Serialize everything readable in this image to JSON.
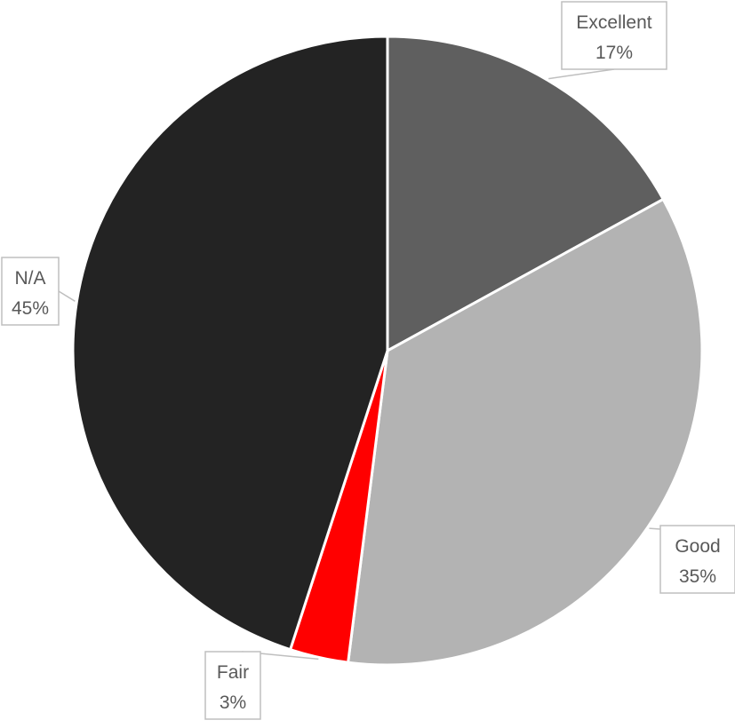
{
  "chart_data": {
    "type": "pie",
    "title": "",
    "categories": [
      "Excellent",
      "Good",
      "Fair",
      "N/A"
    ],
    "values": [
      17,
      35,
      3,
      45
    ],
    "percent_labels": [
      "17%",
      "35%",
      "3%",
      "45%"
    ],
    "colors": [
      "#5f5f5f",
      "#b3b3b3",
      "#ff0000",
      "#232323"
    ],
    "slice_border_color": "#ffffff",
    "start_angle": "12 o'clock",
    "direction": "clockwise",
    "legend": "none",
    "data_labels": "callouts with leader lines"
  }
}
